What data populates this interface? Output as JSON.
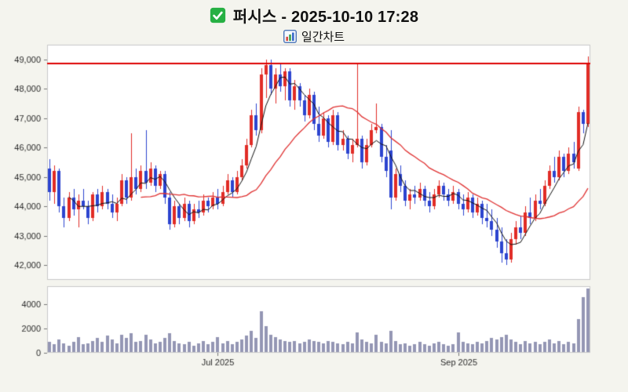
{
  "header": {
    "title": "퍼시스 - 2025-10-10 17:28",
    "subtitle": "일간차트"
  },
  "theme": {
    "page_bg": "#f4f4ee",
    "panel_bg": "#ffffff",
    "panel_border": "#c9c9c9",
    "axis_text": "#2b2b2b",
    "check_green": "#26b043"
  },
  "chart_data": {
    "type": "candlestick",
    "title": "퍼시스 - 2025-10-10 17:28",
    "subtitle": "일간차트",
    "ylim": [
      41500,
      49500
    ],
    "y_ticks": [
      42000,
      43000,
      44000,
      45000,
      46000,
      47000,
      48000,
      49000
    ],
    "x_ticks": [
      {
        "index": 35,
        "label": "Jul 2025"
      },
      {
        "index": 85,
        "label": "Sep 2025"
      }
    ],
    "hline": {
      "value": 48850,
      "color": "#dd0000",
      "width": 2
    },
    "up_color": "#e12c26",
    "down_color": "#2c44cf",
    "ma": [
      {
        "window": 5,
        "color": "#111111",
        "width": 1
      },
      {
        "window": 20,
        "color": "#e03131",
        "width": 1.3
      }
    ],
    "volume_color": "#9496b4",
    "volume_ylim": [
      0,
      5500
    ],
    "volume_ticks": [
      0,
      2000,
      4000
    ],
    "candles": [
      [
        45300,
        45600,
        44200,
        44500
      ],
      [
        44500,
        45400,
        44100,
        45200
      ],
      [
        45200,
        45300,
        43800,
        44000
      ],
      [
        44000,
        44300,
        43300,
        43600
      ],
      [
        43600,
        44500,
        43500,
        44300
      ],
      [
        44300,
        44600,
        43700,
        43900
      ],
      [
        43900,
        44400,
        43300,
        44200
      ],
      [
        44200,
        44600,
        43900,
        44000
      ],
      [
        44000,
        44200,
        43400,
        43600
      ],
      [
        43600,
        44500,
        43500,
        44400
      ],
      [
        44400,
        44600,
        43800,
        44000
      ],
      [
        44000,
        44700,
        43900,
        44500
      ],
      [
        44500,
        44600,
        43900,
        44100
      ],
      [
        44100,
        44400,
        43600,
        43800
      ],
      [
        43800,
        44300,
        43500,
        44100
      ],
      [
        44100,
        45100,
        44000,
        44900
      ],
      [
        44900,
        45000,
        44100,
        44300
      ],
      [
        44300,
        46500,
        44200,
        45000
      ],
      [
        45000,
        45300,
        44400,
        44600
      ],
      [
        44600,
        45400,
        44500,
        45200
      ],
      [
        45200,
        46600,
        44600,
        44800
      ],
      [
        44800,
        45500,
        44700,
        45300
      ],
      [
        45300,
        45400,
        44500,
        44700
      ],
      [
        44700,
        45200,
        44600,
        45100
      ],
      [
        45100,
        45200,
        44100,
        44300
      ],
      [
        44300,
        44500,
        43200,
        43400
      ],
      [
        43400,
        44200,
        43300,
        44000
      ],
      [
        44000,
        44100,
        43400,
        43600
      ],
      [
        43600,
        44300,
        43500,
        44100
      ],
      [
        44100,
        44200,
        43300,
        43500
      ],
      [
        43500,
        44100,
        43400,
        43900
      ],
      [
        43900,
        44200,
        43600,
        43800
      ],
      [
        43800,
        44400,
        43700,
        44200
      ],
      [
        44200,
        44300,
        43800,
        44000
      ],
      [
        44000,
        44500,
        43900,
        44300
      ],
      [
        44300,
        44600,
        43900,
        44100
      ],
      [
        44100,
        44700,
        44000,
        44500
      ],
      [
        44500,
        45100,
        44400,
        44900
      ],
      [
        44900,
        45000,
        44300,
        44500
      ],
      [
        44500,
        45200,
        44400,
        45000
      ],
      [
        45000,
        45600,
        44900,
        45400
      ],
      [
        45400,
        46300,
        45300,
        46100
      ],
      [
        46100,
        47300,
        46000,
        47100
      ],
      [
        47100,
        47500,
        46400,
        46600
      ],
      [
        46600,
        48700,
        46500,
        48500
      ],
      [
        48500,
        49000,
        47700,
        48800
      ],
      [
        48800,
        49000,
        47800,
        48000
      ],
      [
        48000,
        48700,
        47500,
        48500
      ],
      [
        48500,
        48900,
        47900,
        48100
      ],
      [
        48100,
        48700,
        47600,
        48600
      ],
      [
        48600,
        48700,
        47400,
        47600
      ],
      [
        47600,
        48300,
        47300,
        48100
      ],
      [
        48100,
        48200,
        47400,
        47600
      ],
      [
        47600,
        47800,
        46900,
        47100
      ],
      [
        47100,
        48000,
        47000,
        47800
      ],
      [
        47800,
        47900,
        46600,
        46800
      ],
      [
        46800,
        47400,
        46200,
        46400
      ],
      [
        46400,
        47200,
        46300,
        47000
      ],
      [
        47000,
        47100,
        46000,
        46200
      ],
      [
        46200,
        47300,
        46100,
        47100
      ],
      [
        47100,
        47200,
        45900,
        46100
      ],
      [
        46100,
        46600,
        45900,
        46300
      ],
      [
        46300,
        46400,
        45600,
        45800
      ],
      [
        45800,
        46300,
        45500,
        46100
      ],
      [
        46100,
        48900,
        46000,
        46300
      ],
      [
        46300,
        46400,
        45300,
        45500
      ],
      [
        45500,
        46300,
        45400,
        46100
      ],
      [
        46100,
        46800,
        46000,
        46600
      ],
      [
        46600,
        47500,
        46500,
        46700
      ],
      [
        46700,
        46800,
        45500,
        45700
      ],
      [
        45700,
        46100,
        45000,
        45200
      ],
      [
        45900,
        46600,
        43900,
        44300
      ],
      [
        44300,
        45300,
        44200,
        45100
      ],
      [
        45100,
        45400,
        44500,
        44700
      ],
      [
        44700,
        44900,
        44000,
        44200
      ],
      [
        44200,
        44600,
        43900,
        44400
      ],
      [
        44400,
        44700,
        44100,
        44300
      ],
      [
        44300,
        44800,
        44200,
        44600
      ],
      [
        44600,
        44700,
        44000,
        44200
      ],
      [
        44200,
        44500,
        43800,
        44000
      ],
      [
        44000,
        44600,
        43900,
        44400
      ],
      [
        44400,
        44900,
        44300,
        44700
      ],
      [
        44700,
        44800,
        44200,
        44400
      ],
      [
        44400,
        44600,
        44000,
        44200
      ],
      [
        44200,
        44700,
        44100,
        44500
      ],
      [
        44500,
        44600,
        43900,
        44100
      ],
      [
        44100,
        44400,
        43700,
        43900
      ],
      [
        43900,
        44500,
        43800,
        44300
      ],
      [
        44300,
        44400,
        43600,
        43800
      ],
      [
        43800,
        44300,
        43700,
        44100
      ],
      [
        44100,
        44200,
        43400,
        43600
      ],
      [
        43600,
        44100,
        43300,
        43500
      ],
      [
        43500,
        43900,
        43000,
        43200
      ],
      [
        43200,
        43600,
        42600,
        42800
      ],
      [
        42800,
        43300,
        42100,
        42400
      ],
      [
        42400,
        42900,
        42000,
        42200
      ],
      [
        42200,
        43100,
        42100,
        42900
      ],
      [
        42900,
        43500,
        42700,
        43300
      ],
      [
        43300,
        43700,
        42900,
        43100
      ],
      [
        43100,
        44000,
        43000,
        43800
      ],
      [
        43800,
        44300,
        43400,
        43600
      ],
      [
        43600,
        44400,
        43500,
        44200
      ],
      [
        44200,
        44600,
        43900,
        44100
      ],
      [
        44100,
        44900,
        44000,
        44700
      ],
      [
        44700,
        45400,
        44600,
        45200
      ],
      [
        45200,
        45700,
        44800,
        45000
      ],
      [
        45000,
        45900,
        44900,
        45700
      ],
      [
        45700,
        45800,
        45000,
        45200
      ],
      [
        45200,
        46000,
        45100,
        45800
      ],
      [
        45800,
        46200,
        45300,
        45500
      ],
      [
        45300,
        47400,
        45200,
        47200
      ],
      [
        47200,
        47300,
        46500,
        46800
      ],
      [
        46800,
        49100,
        46700,
        48850
      ]
    ],
    "volume": [
      900,
      700,
      1100,
      800,
      600,
      900,
      1300,
      700,
      800,
      1000,
      1200,
      900,
      1400,
      1100,
      800,
      1500,
      1200,
      1600,
      900,
      1000,
      1500,
      1100,
      800,
      900,
      1200,
      1600,
      1000,
      800,
      700,
      900,
      600,
      800,
      1000,
      700,
      900,
      1300,
      800,
      1000,
      700,
      900,
      1100,
      1400,
      1800,
      1200,
      3400,
      2200,
      1500,
      1300,
      1100,
      1000,
      900,
      1000,
      800,
      900,
      1100,
      1000,
      900,
      800,
      1000,
      900,
      800,
      700,
      900,
      800,
      1700,
      1100,
      900,
      800,
      1500,
      900,
      800,
      1800,
      1000,
      700,
      800,
      600,
      700,
      900,
      700,
      600,
      800,
      900,
      700,
      600,
      700,
      1700,
      900,
      800,
      700,
      900,
      800,
      1000,
      1200,
      1100,
      1300,
      1500,
      1100,
      900,
      700,
      1000,
      800,
      900,
      700,
      900,
      1100,
      800,
      1000,
      700,
      900,
      800,
      2800,
      4600,
      5300
    ]
  }
}
